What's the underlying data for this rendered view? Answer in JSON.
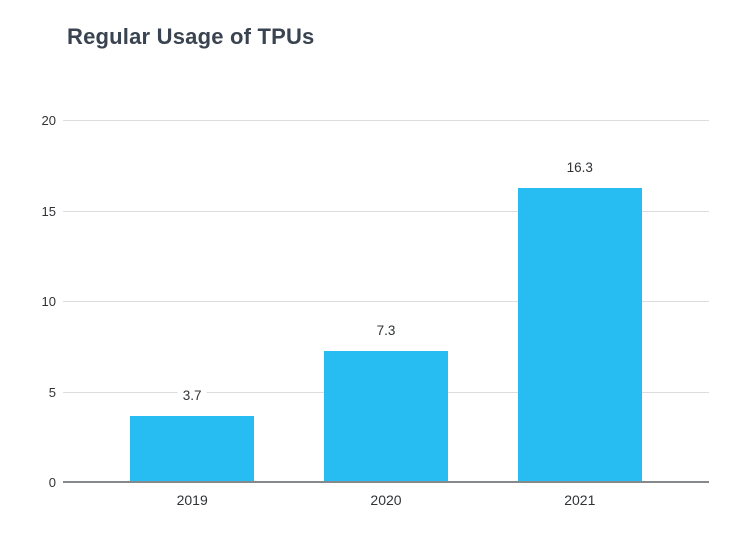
{
  "page": {
    "background": "#ffffff"
  },
  "chart_data": {
    "type": "bar",
    "title": "Regular Usage of TPUs",
    "categories": [
      "2019",
      "2020",
      "2021"
    ],
    "values": [
      3.7,
      7.3,
      16.3
    ],
    "value_labels": [
      "3.7",
      "7.3",
      "16.3"
    ],
    "xlabel": "",
    "ylabel": "",
    "ylim": [
      0,
      20
    ],
    "yticks": [
      0,
      5,
      10,
      15,
      20
    ],
    "grid": true,
    "legend": "none",
    "bar_color": "#28BDF2",
    "gridline_color": "#DBDDE0",
    "axis_line_color": "#85898C",
    "title_color": "#3A4450",
    "label_color": "#303336"
  }
}
